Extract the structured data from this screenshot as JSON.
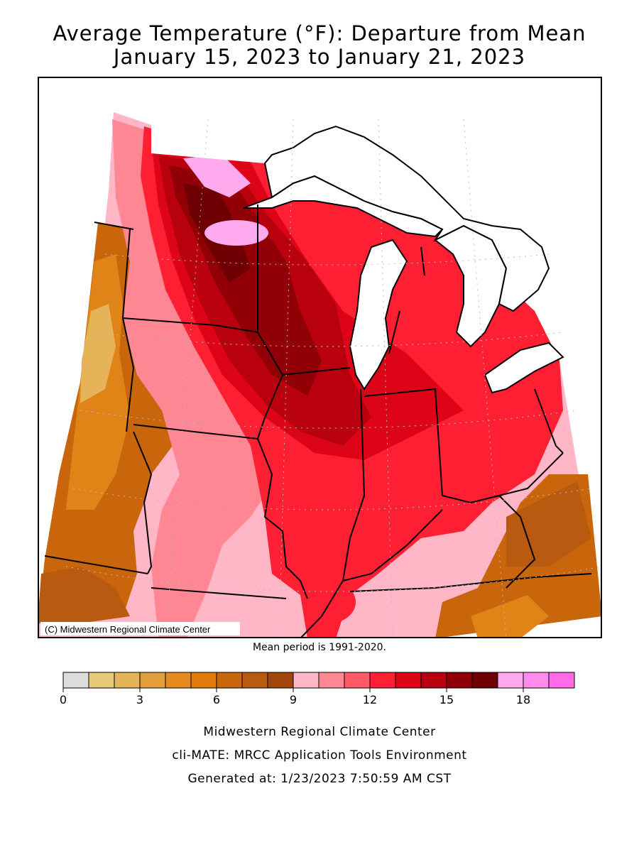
{
  "title_line1": "Average Temperature (°F): Departure from Mean",
  "title_line2": "January 15, 2023 to January 21, 2023",
  "copyright": "(C) Midwestern Regional Climate Center",
  "mean_period": "Mean period is 1991-2020.",
  "legend": {
    "colors": [
      "#dcdcdc",
      "#e8c87a",
      "#e5b458",
      "#e39e3c",
      "#e68a1f",
      "#e07a0a",
      "#c9660c",
      "#b85a10",
      "#a0450b",
      "#ffb6c6",
      "#ff8794",
      "#ff5a66",
      "#ff1f33",
      "#dd0418",
      "#b8000e",
      "#900006",
      "#6e0004",
      "#ffaaee",
      "#ff8cec",
      "#ff6ae8"
    ],
    "tick_labels": [
      "0",
      "3",
      "6",
      "9",
      "12",
      "15",
      "18"
    ],
    "tick_values": [
      0,
      3,
      6,
      9,
      12,
      15,
      18
    ],
    "min": 0,
    "step": 1
  },
  "footer": {
    "line1": "Midwestern Regional Climate Center",
    "line2": "cli-MATE: MRCC Application Tools Environment",
    "line3": "Generated at: 1/23/2023 7:50:59 AM CST"
  }
}
